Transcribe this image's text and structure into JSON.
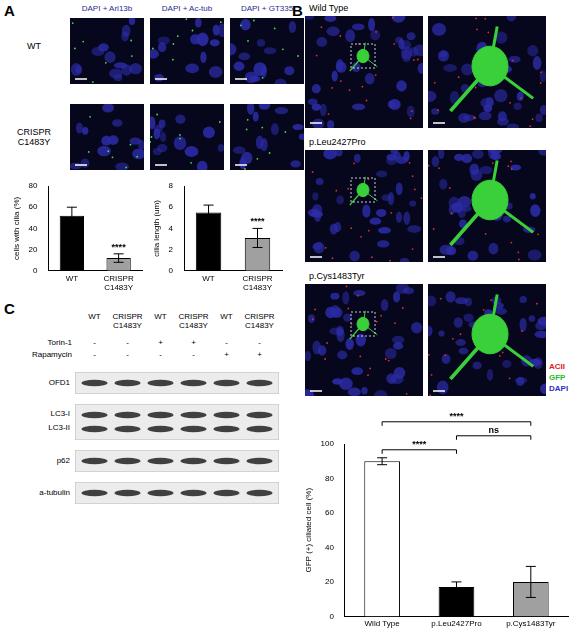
{
  "panels": {
    "A": {
      "label": "A",
      "image_columns": [
        "DAPI + Arl13b",
        "DAPI + Ac-tub",
        "DAPI + GT335"
      ],
      "image_rows": [
        "WT",
        "CRISPR C1483Y"
      ]
    },
    "B": {
      "label": "B",
      "image_rows": [
        "Wild Type",
        "p.Leu2427Pro",
        "p.Cys1483Tyr"
      ],
      "channel_legend": [
        {
          "name": "ACII",
          "color": "#e02020"
        },
        {
          "name": "GFP",
          "color": "#20c020"
        },
        {
          "name": "DAPI",
          "color": "#3030c0"
        }
      ]
    },
    "C": {
      "label": "C",
      "lanes": [
        "WT",
        "CRISPR C1483Y",
        "WT",
        "CRISPR C1483Y",
        "WT",
        "CRISPR C1483Y"
      ],
      "treatment_rows": [
        {
          "name": "Torin-1",
          "signs": [
            "-",
            "-",
            "+",
            "+",
            "-",
            "-"
          ]
        },
        {
          "name": "Rapamycin",
          "signs": [
            "-",
            "-",
            "-",
            "-",
            "+",
            "+"
          ]
        }
      ],
      "blot_rows": [
        "OFD1",
        "LC3-I",
        "LC3-II",
        "p62",
        "a-tubulin"
      ]
    }
  },
  "chart_data": [
    {
      "type": "bar",
      "ylabel": "cells with cilia (%)",
      "categories": [
        "WT",
        "CRISPR C1483Y"
      ],
      "values": [
        52,
        12
      ],
      "errors": [
        8,
        4
      ],
      "colors": [
        "#000000",
        "#a0a0a0"
      ],
      "ylim": [
        0,
        80
      ],
      "yticks": [
        0,
        20,
        40,
        60,
        80
      ],
      "grid": false,
      "annotations": [
        {
          "text": "****",
          "category": "CRISPR C1483Y"
        }
      ]
    },
    {
      "type": "bar",
      "ylabel": "cilia length (um)",
      "categories": [
        "WT",
        "CRISPR C1483Y"
      ],
      "values": [
        5.5,
        3.1
      ],
      "errors": [
        0.7,
        0.9
      ],
      "colors": [
        "#000000",
        "#a0a0a0"
      ],
      "ylim": [
        0,
        8
      ],
      "yticks": [
        0,
        2,
        4,
        6,
        8
      ],
      "grid": false,
      "annotations": [
        {
          "text": "****",
          "category": "CRISPR C1483Y"
        }
      ]
    },
    {
      "type": "bar",
      "ylabel": "GFP (+) ciliated cell (%)",
      "categories": [
        "Wild Type",
        "p.Leu2427Pro",
        "p.Cys1483Tyr"
      ],
      "values": [
        90,
        17,
        20
      ],
      "errors": [
        2,
        3,
        9
      ],
      "colors": [
        "#ffffff",
        "#000000",
        "#a0a0a0"
      ],
      "ylim": [
        0,
        100
      ],
      "yticks": [
        0,
        20,
        40,
        60,
        80,
        100
      ],
      "grid": false,
      "annotations": [
        {
          "text": "****",
          "from": "Wild Type",
          "to": "p.Leu2427Pro"
        },
        {
          "text": "****",
          "from": "Wild Type",
          "to": "p.Cys1483Tyr"
        },
        {
          "text": "ns",
          "from": "p.Leu2427Pro",
          "to": "p.Cys1483Tyr"
        }
      ]
    }
  ]
}
